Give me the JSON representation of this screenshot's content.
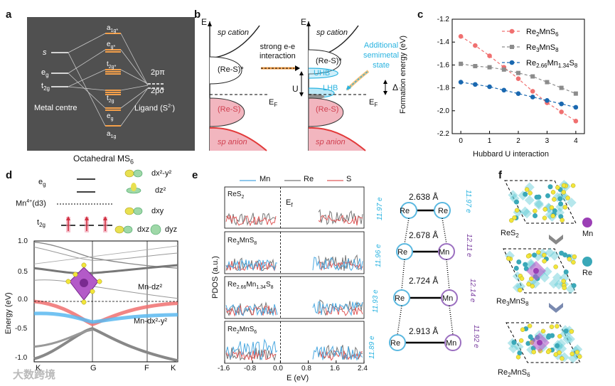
{
  "panels": {
    "a": {
      "label": "a",
      "caption": "Octahedral MS",
      "caption_sub": "6",
      "left_levels": [
        "s",
        "e",
        "t"
      ],
      "left_subs": [
        "",
        "g",
        "2g"
      ],
      "center_levels": [
        "a",
        "e",
        "t",
        "t",
        "e",
        "a"
      ],
      "center_subs": [
        "1g*",
        "g*",
        "2g*",
        "2g",
        "g",
        "1g"
      ],
      "metal_label": "Metal centre",
      "ligand_label": "Ligand (S",
      "ligand_sup": "2-",
      "ligand_close": ")",
      "right_levels": [
        "2pπ",
        "2pσ"
      ]
    },
    "b": {
      "label": "b",
      "axis": "E",
      "sp_cation": "sp cation",
      "sp_anion": "sp anion",
      "res_star": "(Re-S)*",
      "res": "(Re-S)",
      "interaction": [
        "strong e-e",
        "interaction"
      ],
      "ef": "E",
      "ef_sub": "F",
      "uhb": "UHB",
      "lhb": "LHB",
      "u": "U",
      "delta": "Δ",
      "additional": [
        "Additional",
        "semimetal",
        "state"
      ]
    },
    "c": {
      "label": "c",
      "ylabel": "Formation energy (eV)",
      "xlabel": "Hubbard U interaction"
    },
    "d": {
      "label": "d",
      "eg": "e",
      "eg_sub": "g",
      "t2g": "t",
      "t2g_sub": "2g",
      "mn": "Mn",
      "mn_sup": "4+",
      "mn_rest": "(d3)",
      "orbitals": [
        "dx²-y²",
        "dz²",
        "dxy",
        "dxz",
        "dyz"
      ],
      "ylabel": "Energy (eV)",
      "yticks": [
        "1.0",
        "0.5",
        "0.0",
        "-0.5",
        "-1.0"
      ],
      "xticks": [
        "K",
        "G",
        "F",
        "K"
      ],
      "band1": "Mn-dz²",
      "band2": "Mn-dx²-y²"
    },
    "e": {
      "label": "e",
      "legend": [
        "Mn",
        "Re",
        "S"
      ],
      "ylabel": "PDOS (a.u.)",
      "xlabel": "E (eV)",
      "xticks": [
        "-1.6",
        "-0.8",
        "0.0",
        "0.8",
        "1.6",
        "2.4"
      ],
      "ef": "E",
      "ef_sub": "f",
      "compounds": [
        {
          "main": "ReS",
          "sub": "2",
          "rest": ""
        },
        {
          "main": "Re",
          "sub": "3",
          "rest": "MnS",
          "sub2": "8"
        },
        {
          "main": "Re",
          "sub": "2.66",
          "rest": "Mn",
          "sub2": "1.34",
          "rest2": "S",
          "sub3": "8"
        },
        {
          "main": "Re",
          "sub": "2",
          "rest": "MnS",
          "sub2": "6"
        }
      ],
      "bonds": [
        "2.638 Å",
        "2.678 Å",
        "2.724 Å",
        "2.913 Å"
      ],
      "left_atoms": [
        "Re",
        "Re",
        "Re",
        "Re"
      ],
      "right_atoms": [
        "Re",
        "Mn",
        "Mn",
        "Mn"
      ],
      "left_charges": [
        "11.97 e",
        "11.96 e",
        "11.93 e",
        "11.89 e"
      ],
      "right_charges": [
        "11.97 e",
        "12.11 e",
        "12.14 e",
        "11.92 e"
      ]
    },
    "f": {
      "label": "f",
      "structures": [
        "ReS",
        "Re",
        "Re"
      ],
      "structure_subs": [
        "2",
        "3",
        "2"
      ],
      "structure_rest": [
        "",
        "MnS",
        "MnS"
      ],
      "structure_sub2": [
        "",
        "8",
        "6"
      ],
      "legend": [
        "Mn",
        "Re"
      ]
    }
  },
  "colors": {
    "panel_a_bg": "#505050",
    "orange": "#f5a04a",
    "red": "#e8585a",
    "gray": "#8c8c8c",
    "blue": "#1a68b0",
    "cyan": "#2ab3e0",
    "purple": "#9b3fb5",
    "pink_fill": "#f2b6bf",
    "yellow": "#f2e63b",
    "teal": "#5ec9d4"
  },
  "watermark": "大数跨境",
  "chart_data": {
    "type": "line",
    "xlabel": "Hubbard U interaction",
    "ylabel": "Formation energy (eV)",
    "xlim": [
      -0.3,
      4.3
    ],
    "ylim": [
      -2.2,
      -1.2
    ],
    "xticks": [
      0,
      1,
      2,
      3,
      4
    ],
    "yticks": [
      -1.2,
      -1.4,
      -1.6,
      -1.8,
      -2.0,
      -2.2
    ],
    "x": [
      0,
      0.5,
      1,
      1.5,
      2,
      2.5,
      3,
      3.5,
      4
    ],
    "series": [
      {
        "name": "Re2MnS6",
        "label_main": "Re",
        "label_sub": "2",
        "label_rest": "MnS",
        "label_sub2": "6",
        "color": "#f07070",
        "marker": "circle",
        "values": [
          -1.35,
          -1.43,
          -1.52,
          -1.62,
          -1.72,
          -1.83,
          -1.93,
          -2.01,
          -2.09
        ]
      },
      {
        "name": "Re3MnS8",
        "label_main": "Re",
        "label_sub": "3",
        "label_rest": "MnS",
        "label_sub2": "8",
        "color": "#8c8c8c",
        "marker": "square",
        "values": [
          -1.59,
          -1.61,
          -1.62,
          -1.64,
          -1.67,
          -1.7,
          -1.75,
          -1.8,
          -1.85
        ]
      },
      {
        "name": "Re2.66Mn1.34S8",
        "label_main": "Re",
        "label_sub": "2.66",
        "label_rest": "Mn",
        "label_sub2": "1.34",
        "label_rest2": "S",
        "label_sub3": "8",
        "color": "#1a68b0",
        "marker": "circle",
        "values": [
          -1.75,
          -1.77,
          -1.79,
          -1.82,
          -1.85,
          -1.88,
          -1.91,
          -1.94,
          -1.97
        ]
      }
    ],
    "legend_position": "top-right"
  }
}
